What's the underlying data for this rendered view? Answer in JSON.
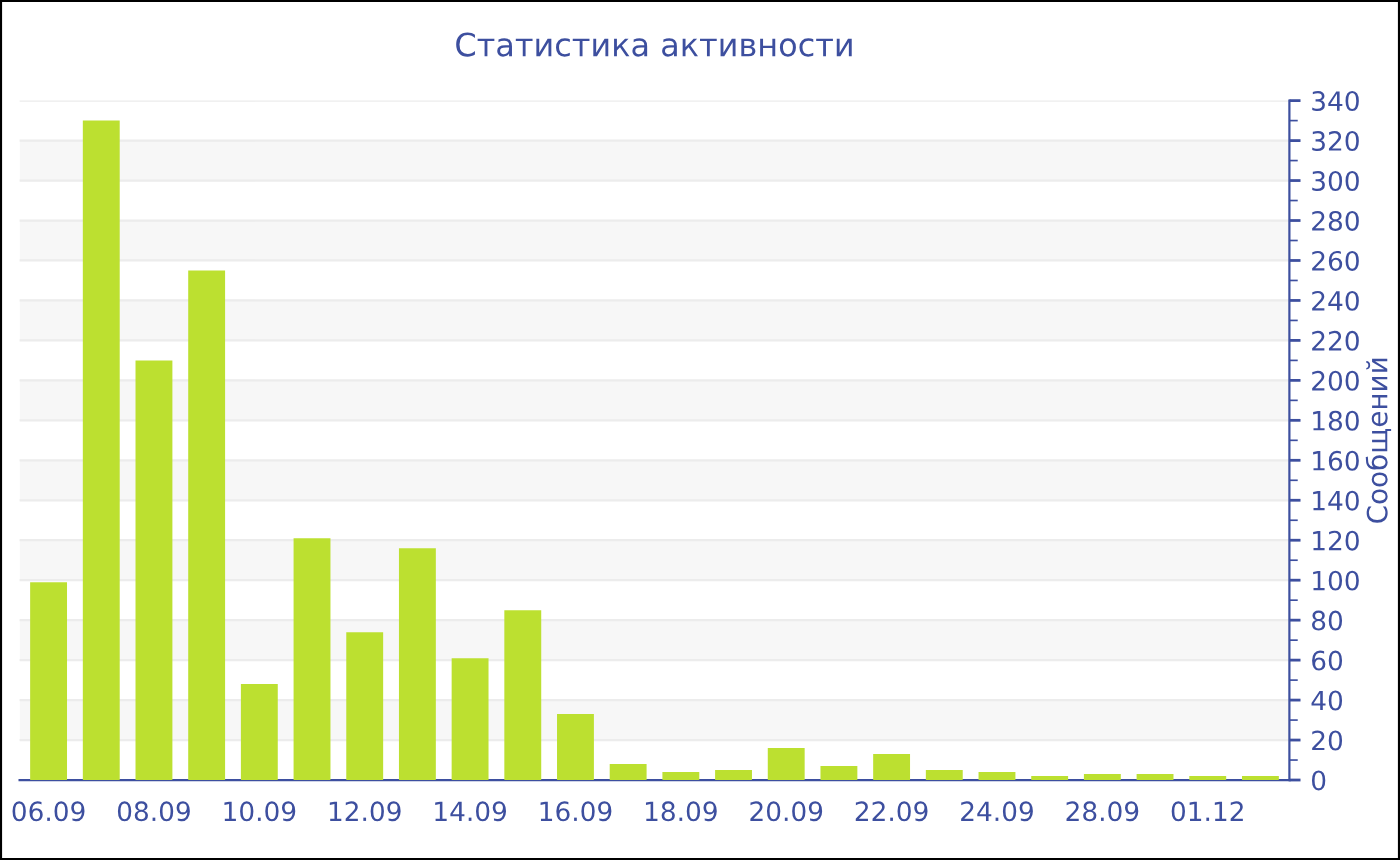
{
  "chart_data": {
    "type": "bar",
    "title": "Статистика активности",
    "ylabel": "Сообщений",
    "categories": [
      "06.09",
      null,
      "08.09",
      null,
      "10.09",
      null,
      "12.09",
      null,
      "14.09",
      null,
      "16.09",
      null,
      "18.09",
      null,
      "20.09",
      null,
      "22.09",
      null,
      "24.09",
      null,
      "28.09",
      null,
      "01.12",
      null
    ],
    "values": [
      99,
      330,
      210,
      255,
      48,
      121,
      74,
      116,
      61,
      85,
      33,
      8,
      4,
      5,
      16,
      7,
      13,
      5,
      4,
      2,
      3,
      3,
      2,
      2
    ],
    "color": "#bce030",
    "ylim": [
      0,
      340
    ],
    "yticks": [
      0,
      20,
      40,
      60,
      80,
      100,
      120,
      140,
      160,
      180,
      200,
      220,
      240,
      260,
      280,
      300,
      320,
      340
    ],
    "grid": "y",
    "legend": false
  }
}
